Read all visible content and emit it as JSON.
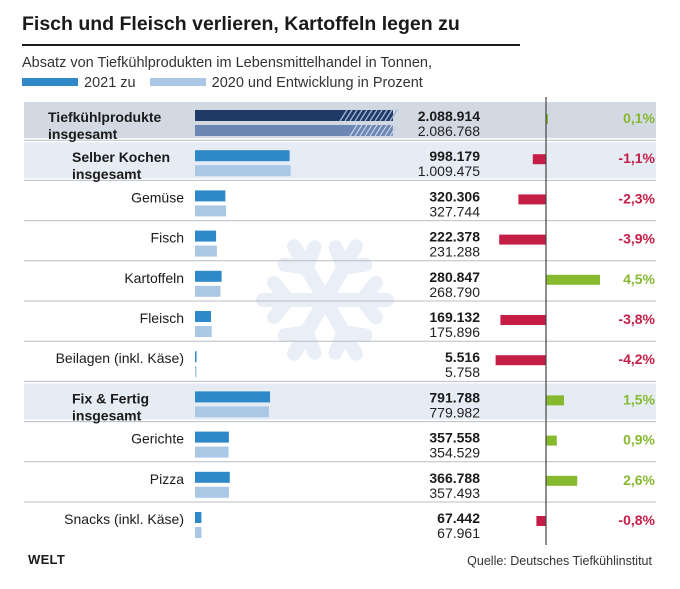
{
  "title": "Fisch und Fleisch verlieren, Kartoffeln legen zu",
  "subtitle": "Absatz von Tiefkühlprodukten im Lebensmittelhandel in Tonnen,",
  "legend": {
    "current_label": "2021 zu",
    "previous_label": "2020 und Entwicklung in Prozent"
  },
  "colors": {
    "current": "#2f88c7",
    "previous": "#aac7e6",
    "total_current": "#1e3a66",
    "total_previous": "#6d87b5",
    "positive": "#86b92d",
    "negative": "#c51e46",
    "highlight": "#e6ecf4",
    "top_highlight": "#d3d9e3"
  },
  "source": "Quelle: Deutsches Tiefkühlinstitut",
  "logo": "WELT",
  "chart_data": {
    "type": "bar",
    "series": [
      {
        "name": "2021",
        "values": [
          2088914,
          998179,
          320306,
          222378,
          280847,
          169132,
          5516,
          791788,
          357558,
          366788,
          67442
        ]
      },
      {
        "name": "2020",
        "values": [
          2086768,
          1009475,
          327744,
          231288,
          268790,
          175896,
          5758,
          779982,
          354529,
          357493,
          67961
        ]
      }
    ],
    "rows": [
      {
        "label": "Tiefkühlprodukte insgesamt",
        "bold": true,
        "level": "total",
        "v2021": 2088914,
        "v2020": 2086768,
        "t2021": "2.088.914",
        "t2020": "2.086.768",
        "change": 0.1,
        "change_label": "0,1%"
      },
      {
        "label": "Selber Kochen insgesamt",
        "bold": true,
        "level": "group",
        "v2021": 998179,
        "v2020": 1009475,
        "t2021": "998.179",
        "t2020": "1.009.475",
        "change": -1.1,
        "change_label": "-1,1%"
      },
      {
        "label": "Gemüse",
        "bold": false,
        "level": "item",
        "v2021": 320306,
        "v2020": 327744,
        "t2021": "320.306",
        "t2020": "327.744",
        "change": -2.3,
        "change_label": "-2,3%"
      },
      {
        "label": "Fisch",
        "bold": false,
        "level": "item",
        "v2021": 222378,
        "v2020": 231288,
        "t2021": "222.378",
        "t2020": "231.288",
        "change": -3.9,
        "change_label": "-3,9%"
      },
      {
        "label": "Kartoffeln",
        "bold": false,
        "level": "item",
        "v2021": 280847,
        "v2020": 268790,
        "t2021": "280.847",
        "t2020": "268.790",
        "change": 4.5,
        "change_label": "4,5%"
      },
      {
        "label": "Fleisch",
        "bold": false,
        "level": "item",
        "v2021": 169132,
        "v2020": 175896,
        "t2021": "169.132",
        "t2020": "175.896",
        "change": -3.8,
        "change_label": "-3,8%"
      },
      {
        "label": "Beilagen (inkl. Käse)",
        "bold": false,
        "level": "item",
        "v2021": 5516,
        "v2020": 5758,
        "t2021": "5.516",
        "t2020": "5.758",
        "change": -4.2,
        "change_label": "-4,2%"
      },
      {
        "label": "Fix & Fertig insgesamt",
        "bold": true,
        "level": "group",
        "v2021": 791788,
        "v2020": 779982,
        "t2021": "791.788",
        "t2020": "779.982",
        "change": 1.5,
        "change_label": "1,5%"
      },
      {
        "label": "Gerichte",
        "bold": false,
        "level": "item",
        "v2021": 357558,
        "v2020": 354529,
        "t2021": "357.558",
        "t2020": "354.529",
        "change": 0.9,
        "change_label": "0,9%"
      },
      {
        "label": "Pizza",
        "bold": false,
        "level": "item",
        "v2021": 366788,
        "v2020": 357493,
        "t2021": "366.788",
        "t2020": "357.493",
        "change": 2.6,
        "change_label": "2,6%"
      },
      {
        "label": "Snacks (inkl. Käse)",
        "bold": false,
        "level": "item",
        "v2021": 67442,
        "v2020": 67961,
        "t2021": "67.442",
        "t2020": "67.961",
        "change": -0.8,
        "change_label": "-0,8%"
      }
    ]
  }
}
